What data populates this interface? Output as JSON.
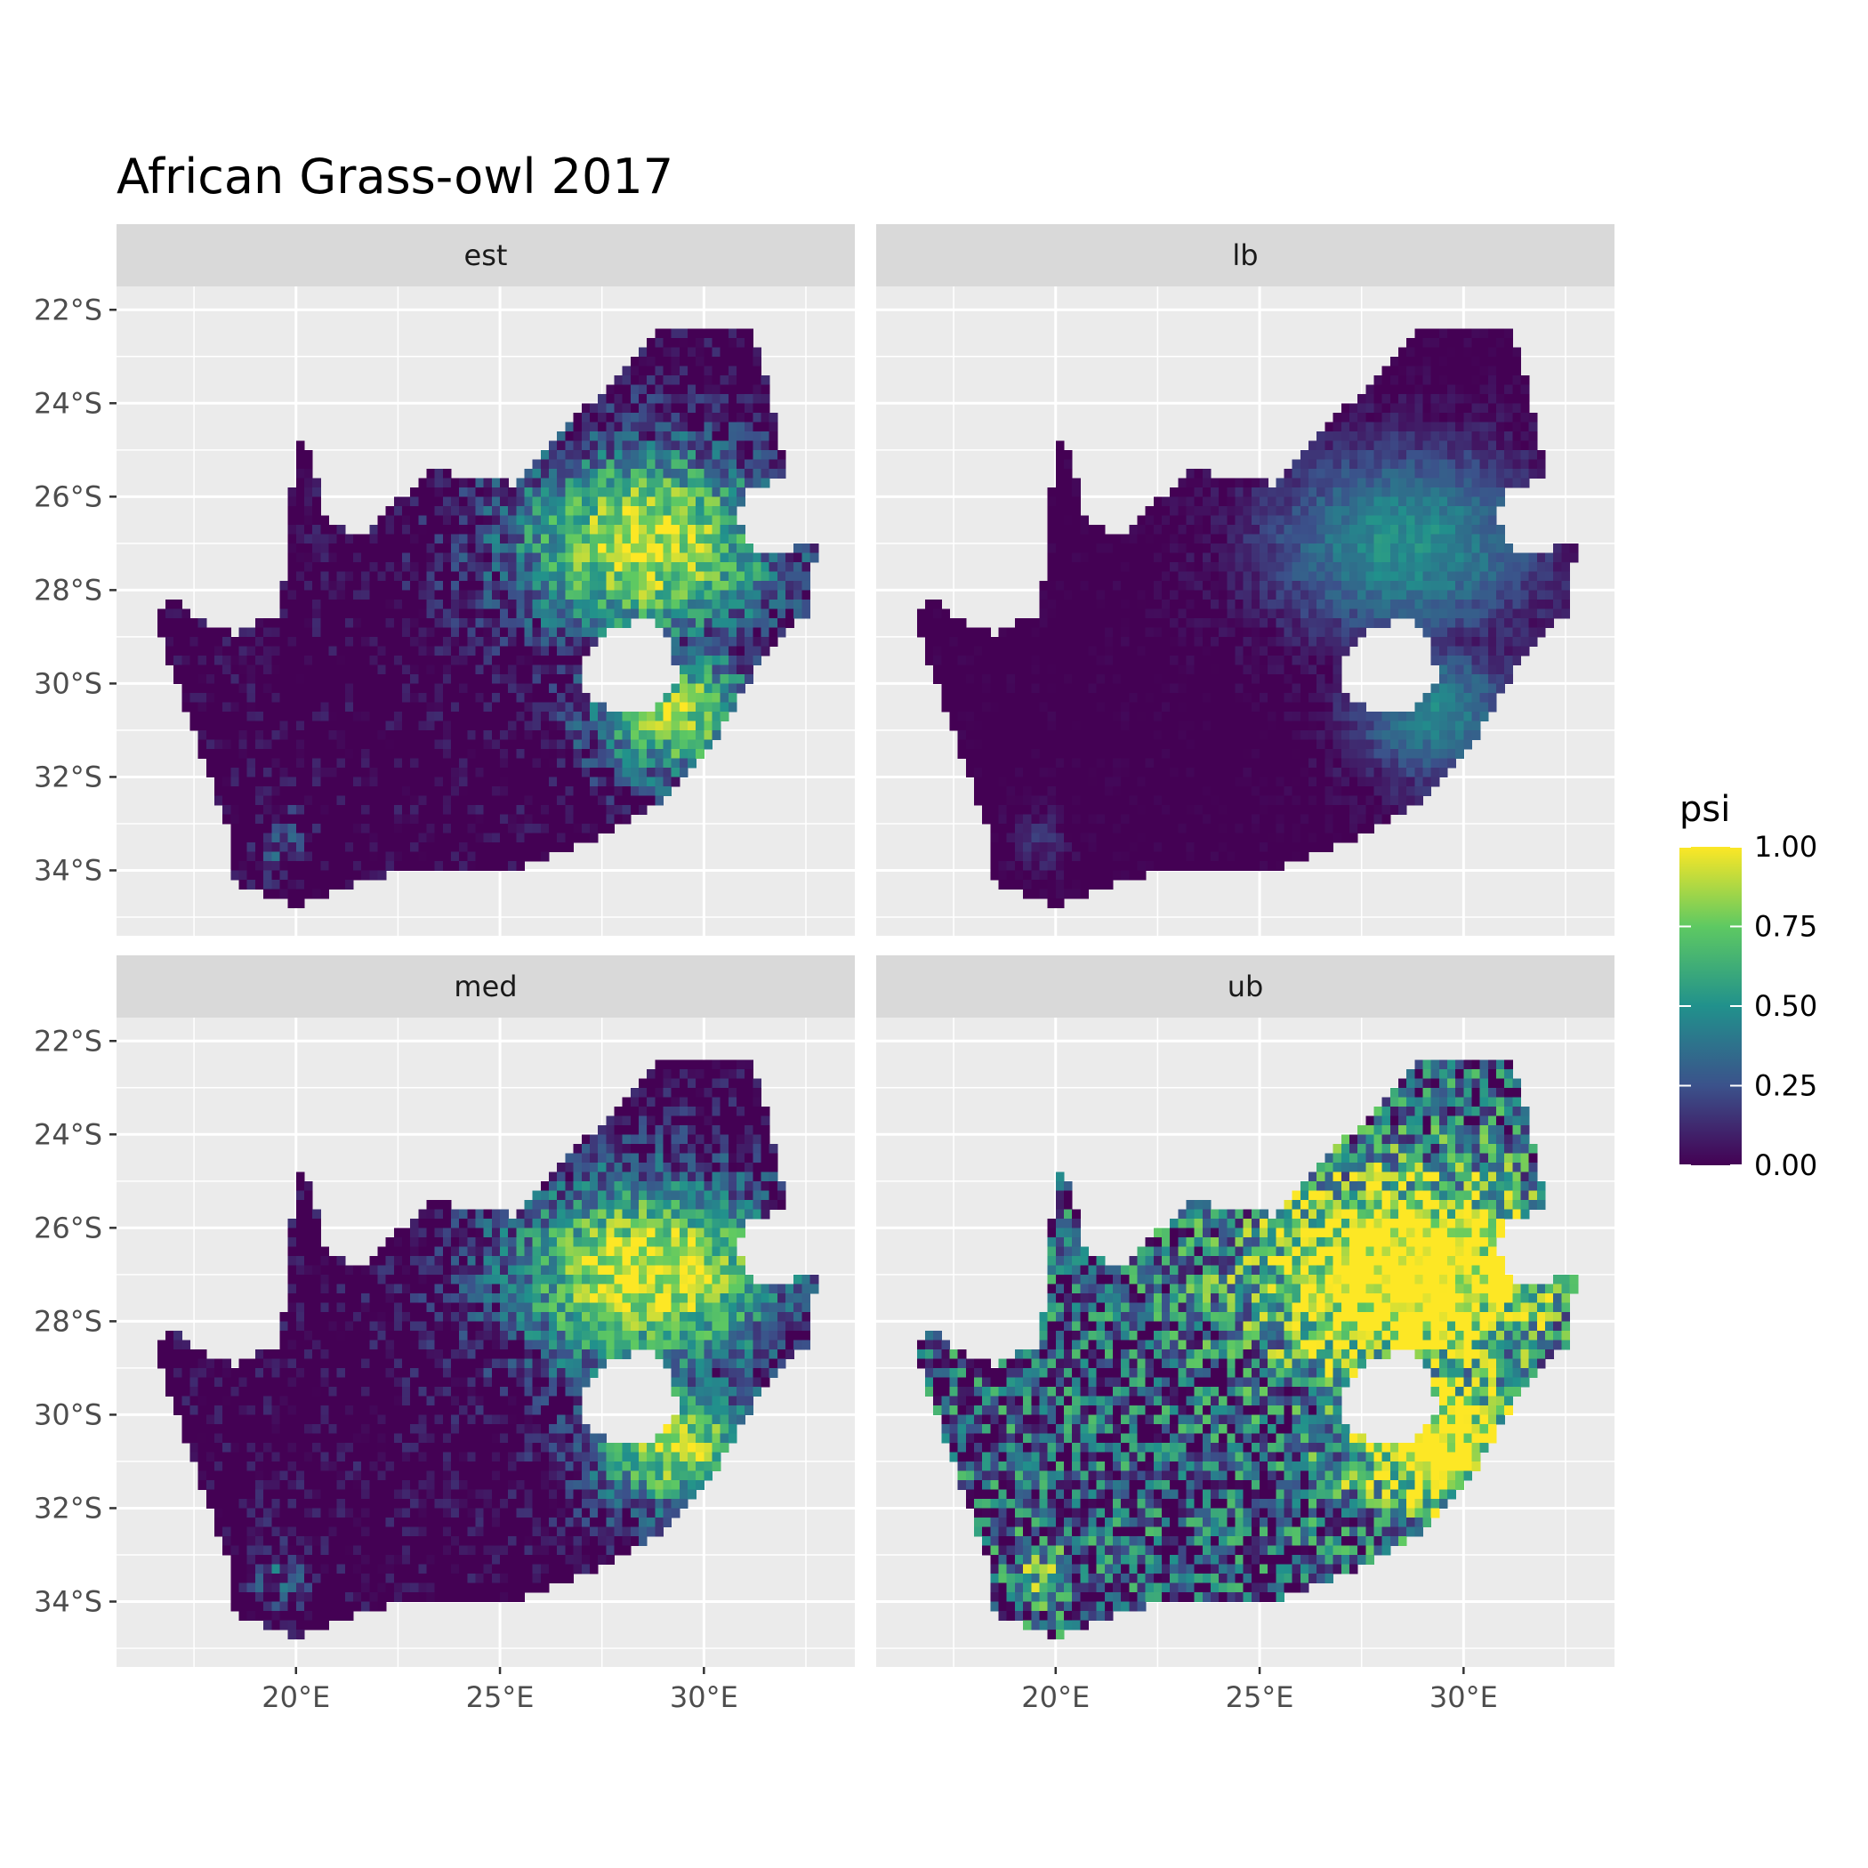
{
  "title": "African Grass-owl 2017",
  "chart_data": {
    "type": "heatmap",
    "title": "African Grass-owl 2017",
    "xlim": [
      15.6,
      33.7
    ],
    "ylim": [
      -35.4,
      -21.5
    ],
    "x_ticks": [
      {
        "value": 20,
        "label": "20°E"
      },
      {
        "value": 25,
        "label": "25°E"
      },
      {
        "value": 30,
        "label": "30°E"
      }
    ],
    "y_ticks": [
      {
        "value": -22,
        "label": "22°S"
      },
      {
        "value": -24,
        "label": "24°S"
      },
      {
        "value": -26,
        "label": "26°S"
      },
      {
        "value": -28,
        "label": "28°S"
      },
      {
        "value": -30,
        "label": "30°S"
      },
      {
        "value": -32,
        "label": "32°S"
      },
      {
        "value": -34,
        "label": "34°S"
      }
    ],
    "facets": [
      {
        "label": "est",
        "intensity": 0.55
      },
      {
        "label": "lb",
        "intensity": 0.18
      },
      {
        "label": "med",
        "intensity": 0.6
      },
      {
        "label": "ub",
        "intensity": 0.95
      }
    ],
    "legend": {
      "title": "psi",
      "position": "right",
      "min": 0,
      "max": 1,
      "ticks": [
        {
          "value": 1.0,
          "label": "1.00"
        },
        {
          "value": 0.75,
          "label": "0.75"
        },
        {
          "value": 0.5,
          "label": "0.50"
        },
        {
          "value": 0.25,
          "label": "0.25"
        },
        {
          "value": 0.0,
          "label": "0.00"
        }
      ],
      "colors": [
        "#440154",
        "#3b528b",
        "#21918c",
        "#5ec962",
        "#fde725"
      ]
    },
    "grid": true,
    "panel_background": "#ebebeb",
    "strip_background": "#d9d9d9"
  }
}
